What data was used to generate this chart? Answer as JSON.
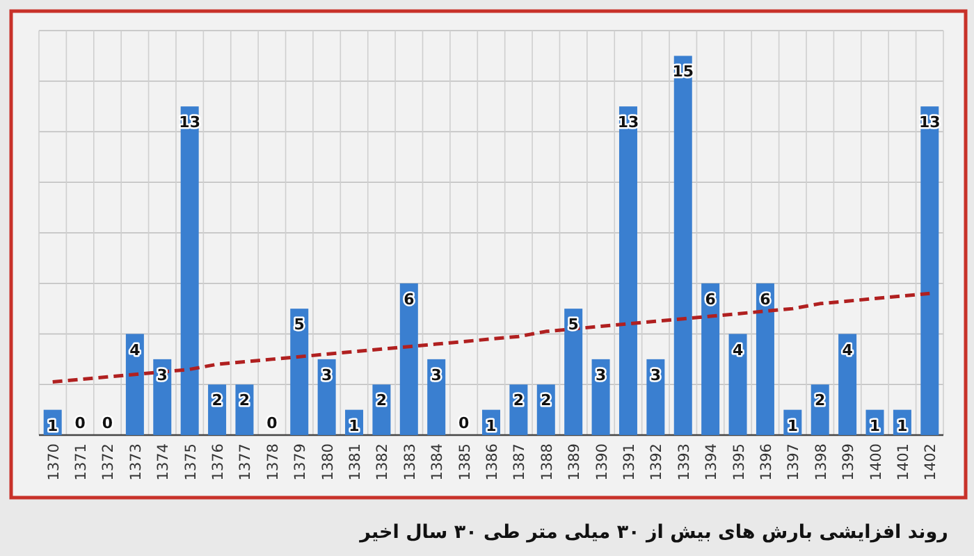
{
  "chart_data": {
    "type": "bar",
    "title": "روند افزایشی بارش های بیش از ۳۰ میلی متر طی ۳۰ سال اخیر",
    "categories": [
      "1370",
      "1371",
      "1372",
      "1373",
      "1374",
      "1375",
      "1376",
      "1377",
      "1378",
      "1379",
      "1380",
      "1381",
      "1382",
      "1383",
      "1384",
      "1385",
      "1386",
      "1387",
      "1388",
      "1389",
      "1390",
      "1391",
      "1392",
      "1393",
      "1394",
      "1395",
      "1396",
      "1397",
      "1398",
      "1399",
      "1400",
      "1401",
      "1402"
    ],
    "series": [
      {
        "color": "#3a7fd0",
        "values": [
          1,
          0,
          0,
          4,
          3,
          13,
          2,
          2,
          0,
          5,
          3,
          1,
          2,
          6,
          3,
          0,
          1,
          2,
          2,
          5,
          3,
          13,
          3,
          15,
          6,
          4,
          6,
          1,
          2,
          4,
          1,
          1,
          13
        ],
        "value_labels": [
          "1",
          "0",
          "0",
          "4",
          "3",
          "13",
          "2",
          "2",
          "0",
          "5",
          "3",
          "1",
          "2",
          "6",
          "3",
          "0",
          "1",
          "2",
          "2",
          "5",
          "3",
          "13",
          "3",
          "15",
          "6",
          "4",
          "6",
          "1",
          "2",
          "4",
          "1",
          "1",
          "13"
        ]
      },
      {
        "type": "line",
        "color": "#b02020",
        "line_style": "dashed",
        "values": [
          2.1,
          2.2,
          2.3,
          2.4,
          2.5,
          2.6,
          2.8,
          2.9,
          3.0,
          3.1,
          3.2,
          3.3,
          3.4,
          3.5,
          3.6,
          3.7,
          3.8,
          3.9,
          4.1,
          4.2,
          4.3,
          4.4,
          4.5,
          4.6,
          4.7,
          4.8,
          4.9,
          5.0,
          5.2,
          5.3,
          5.4,
          5.5,
          5.6
        ]
      }
    ],
    "ylim": [
      0,
      16
    ],
    "yticks": [
      {
        "value": 0,
        "label": null
      },
      {
        "value": 2,
        "label": null
      },
      {
        "value": 4,
        "label": null
      },
      {
        "value": 6,
        "label": null
      },
      {
        "value": 8,
        "label": null
      },
      {
        "value": 10,
        "label": null
      },
      {
        "value": 12,
        "label": null
      },
      {
        "value": 14,
        "label": null
      },
      {
        "value": 16,
        "label": null
      }
    ],
    "tick_labels": "x",
    "grid": true
  }
}
